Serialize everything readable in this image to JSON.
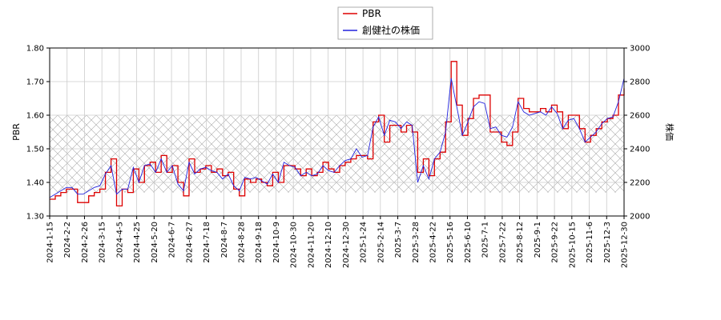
{
  "chart_data": {
    "type": "line",
    "x_ticks": [
      "2024-1-15",
      "2024-2-2",
      "2024-2-26",
      "2024-3-15",
      "2024-4-5",
      "2024-4-25",
      "2024-5-20",
      "2024-6-7",
      "2024-6-27",
      "2024-7-18",
      "2024-8-7",
      "2024-8-28",
      "2024-9-18",
      "2024-10-9",
      "2024-10-30",
      "2024-11-20",
      "2024-12-10",
      "2024-12-30",
      "2025-1-24",
      "2025-2-14",
      "2025-3-7",
      "2025-3-28",
      "2025-4-22",
      "2025-5-16",
      "2025-6-10",
      "2025-7-1",
      "2025-7-22",
      "2025-8-12",
      "2025-9-1",
      "2025-9-22",
      "2025-10-15",
      "2025-11-6",
      "2025-12-3",
      "2025-12-30"
    ],
    "y_left": {
      "label": "PBR",
      "range": [
        1.3,
        1.8
      ],
      "ticks": [
        "1.30",
        "1.40",
        "1.50",
        "1.60",
        "1.70",
        "1.80"
      ]
    },
    "y_right": {
      "label": "株価",
      "range": [
        2000,
        3000
      ],
      "ticks": [
        "2000",
        "2200",
        "2400",
        "2600",
        "2800",
        "3000"
      ]
    },
    "shaded_band": {
      "axis": "left",
      "from": 1.37,
      "to": 1.6,
      "pattern": "crosshatch"
    },
    "grid": true,
    "legend": {
      "placement": "top-center"
    },
    "series": [
      {
        "name": "PBR",
        "axis": "left",
        "color": "#dd0000",
        "values": [
          1.35,
          1.36,
          1.37,
          1.38,
          1.38,
          1.34,
          1.34,
          1.36,
          1.37,
          1.38,
          1.43,
          1.47,
          1.33,
          1.38,
          1.37,
          1.44,
          1.4,
          1.45,
          1.46,
          1.43,
          1.48,
          1.43,
          1.45,
          1.4,
          1.36,
          1.47,
          1.43,
          1.44,
          1.45,
          1.43,
          1.44,
          1.42,
          1.43,
          1.38,
          1.36,
          1.41,
          1.4,
          1.41,
          1.4,
          1.39,
          1.43,
          1.4,
          1.45,
          1.45,
          1.44,
          1.42,
          1.44,
          1.42,
          1.43,
          1.46,
          1.44,
          1.43,
          1.45,
          1.46,
          1.47,
          1.48,
          1.48,
          1.47,
          1.58,
          1.6,
          1.52,
          1.57,
          1.57,
          1.55,
          1.57,
          1.55,
          1.43,
          1.47,
          1.42,
          1.47,
          1.49,
          1.58,
          1.76,
          1.63,
          1.54,
          1.59,
          1.65,
          1.66,
          1.66,
          1.55,
          1.55,
          1.52,
          1.51,
          1.55,
          1.65,
          1.62,
          1.61,
          1.61,
          1.62,
          1.61,
          1.63,
          1.61,
          1.56,
          1.6,
          1.6,
          1.56,
          1.52,
          1.54,
          1.56,
          1.58,
          1.59,
          1.6,
          1.66,
          1.68
        ]
      },
      {
        "name": "創健社の株価",
        "axis": "right",
        "color": "#2222dd",
        "values": [
          2110,
          2130,
          2150,
          2170,
          2170,
          2130,
          2130,
          2150,
          2170,
          2180,
          2250,
          2300,
          2130,
          2160,
          2160,
          2290,
          2200,
          2300,
          2310,
          2260,
          2340,
          2260,
          2300,
          2190,
          2150,
          2320,
          2250,
          2280,
          2290,
          2270,
          2260,
          2220,
          2250,
          2180,
          2150,
          2230,
          2220,
          2230,
          2210,
          2190,
          2250,
          2200,
          2320,
          2300,
          2290,
          2240,
          2260,
          2240,
          2250,
          2300,
          2270,
          2260,
          2300,
          2330,
          2340,
          2400,
          2350,
          2360,
          2530,
          2590,
          2480,
          2570,
          2560,
          2520,
          2560,
          2540,
          2200,
          2300,
          2220,
          2340,
          2380,
          2500,
          2820,
          2650,
          2480,
          2560,
          2650,
          2680,
          2670,
          2520,
          2530,
          2480,
          2470,
          2530,
          2680,
          2620,
          2600,
          2610,
          2620,
          2600,
          2650,
          2610,
          2520,
          2570,
          2580,
          2520,
          2440,
          2470,
          2500,
          2550,
          2580,
          2590,
          2680,
          2820
        ]
      }
    ]
  }
}
